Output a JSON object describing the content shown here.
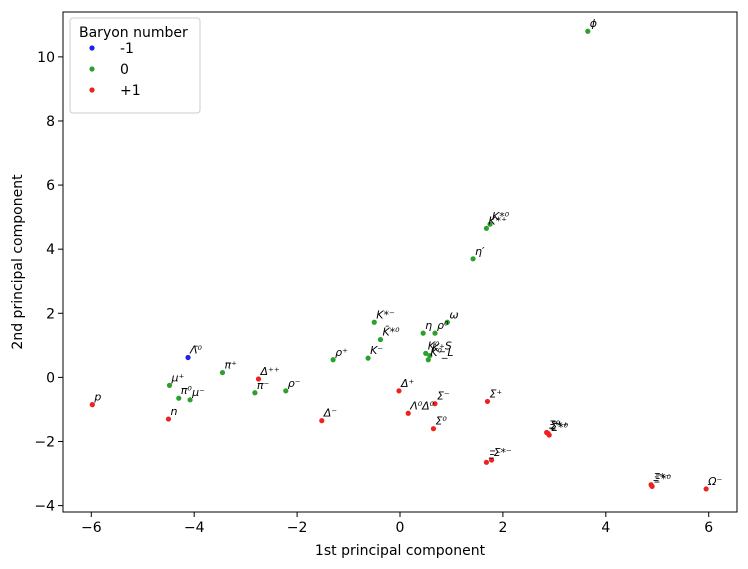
{
  "chart_data": {
    "type": "scatter",
    "xlabel": "1st principal component",
    "ylabel": "2nd principal component",
    "xlim": [
      -6.55,
      6.55
    ],
    "ylim": [
      -4.2,
      11.4
    ],
    "xticks": [
      -6,
      -4,
      -2,
      0,
      2,
      4,
      6
    ],
    "yticks": [
      -4,
      -2,
      0,
      2,
      4,
      6,
      8,
      10
    ],
    "xtick_labels": [
      "−6",
      "−4",
      "−2",
      "0",
      "2",
      "4",
      "6"
    ],
    "ytick_labels": [
      "−4",
      "−2",
      "0",
      "2",
      "4",
      "6",
      "8",
      "10"
    ],
    "grid": false,
    "legend": {
      "title": "Baryon number",
      "position": "top-left",
      "entries": [
        {
          "label": "-1",
          "color": "#1f1fee"
        },
        {
          "label": "0",
          "color": "#2ca02c"
        },
        {
          "label": "+1",
          "color": "#ee2020"
        }
      ]
    },
    "points": [
      {
        "label": "p",
        "x": -5.98,
        "y": -0.85,
        "b": "+1"
      },
      {
        "label": "n",
        "x": -4.5,
        "y": -1.3,
        "b": "+1"
      },
      {
        "label": "Λ̄⁰",
        "x": -4.12,
        "y": 0.62,
        "b": "-1"
      },
      {
        "label": "μ⁺",
        "x": -4.48,
        "y": -0.25,
        "b": "0"
      },
      {
        "label": "π⁰",
        "x": -4.3,
        "y": -0.65,
        "b": "0"
      },
      {
        "label": "μ⁻",
        "x": -4.08,
        "y": -0.7,
        "b": "0"
      },
      {
        "label": "π⁺",
        "x": -3.45,
        "y": 0.15,
        "b": "0"
      },
      {
        "label": "Δ⁺⁺",
        "x": -2.75,
        "y": -0.05,
        "b": "+1"
      },
      {
        "label": "π⁻",
        "x": -2.82,
        "y": -0.48,
        "b": "0"
      },
      {
        "label": "ρ⁻",
        "x": -2.22,
        "y": -0.42,
        "b": "0"
      },
      {
        "label": "Δ⁻",
        "x": -1.52,
        "y": -1.35,
        "b": "+1"
      },
      {
        "label": "ρ⁺",
        "x": -1.3,
        "y": 0.55,
        "b": "0"
      },
      {
        "label": "K⁻",
        "x": -0.62,
        "y": 0.6,
        "b": "0"
      },
      {
        "label": "K̄*⁰",
        "x": -0.38,
        "y": 1.18,
        "b": "0"
      },
      {
        "label": "K*⁻",
        "x": -0.5,
        "y": 1.72,
        "b": "0"
      },
      {
        "label": "Δ⁺",
        "x": -0.02,
        "y": -0.42,
        "b": "+1"
      },
      {
        "label": "Λ⁰Δ⁰",
        "x": 0.16,
        "y": -1.12,
        "b": "+1"
      },
      {
        "label": "Σ⁰",
        "x": 0.65,
        "y": -1.6,
        "b": "+1"
      },
      {
        "label": "Σ⁻",
        "x": 0.68,
        "y": -0.82,
        "b": "+1"
      },
      {
        "label": "ρ⁰",
        "x": 0.68,
        "y": 1.38,
        "b": "0"
      },
      {
        "label": "η",
        "x": 0.45,
        "y": 1.38,
        "b": "0"
      },
      {
        "label": "ω",
        "x": 0.92,
        "y": 1.72,
        "b": "0"
      },
      {
        "label": "K⁰_S",
        "x": 0.5,
        "y": 0.75,
        "b": "0"
      },
      {
        "label": "K⁺",
        "x": 0.58,
        "y": 0.68,
        "b": "0"
      },
      {
        "label": "K⁰_L",
        "x": 0.55,
        "y": 0.55,
        "b": "0"
      },
      {
        "label": "Σ⁺",
        "x": 1.7,
        "y": -0.75,
        "b": "+1"
      },
      {
        "label": "Σ*⁻",
        "x": 1.78,
        "y": -2.58,
        "b": "+1"
      },
      {
        "label": "Ξ⁻",
        "x": 1.68,
        "y": -2.65,
        "b": "+1"
      },
      {
        "label": "η′",
        "x": 1.42,
        "y": 3.7,
        "b": "0"
      },
      {
        "label": "K*⁺",
        "x": 1.68,
        "y": 4.65,
        "b": "0"
      },
      {
        "label": "K*⁰",
        "x": 1.75,
        "y": 4.78,
        "b": "0"
      },
      {
        "label": "Ξ⁰",
        "x": 2.85,
        "y": -1.72,
        "b": "+1"
      },
      {
        "label": "Σ*⁺",
        "x": 2.88,
        "y": -1.75,
        "b": "+1"
      },
      {
        "label": "Σ*⁰",
        "x": 2.9,
        "y": -1.8,
        "b": "+1"
      },
      {
        "label": "ϕ",
        "x": 3.65,
        "y": 10.8,
        "b": "0"
      },
      {
        "label": "Ξ*⁻",
        "x": 4.88,
        "y": -3.35,
        "b": "+1"
      },
      {
        "label": "Ξ*⁰",
        "x": 4.9,
        "y": -3.4,
        "b": "+1"
      },
      {
        "label": "Ω⁻",
        "x": 5.95,
        "y": -3.48,
        "b": "+1"
      }
    ]
  }
}
